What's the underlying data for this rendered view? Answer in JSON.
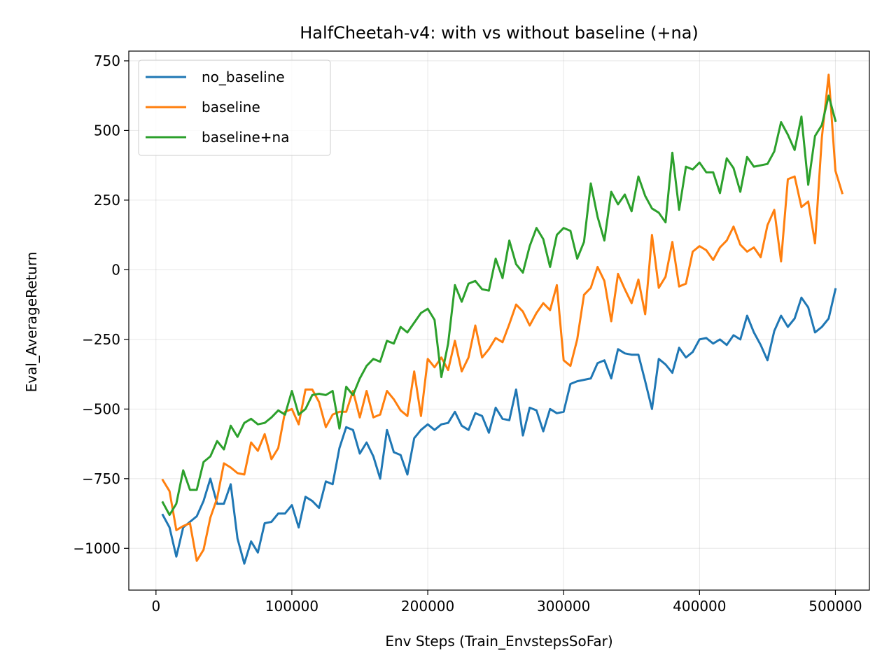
{
  "chart_data": {
    "type": "line",
    "title": "HalfCheetah-v4: with vs without baseline (+na)",
    "xlabel": "Env Steps (Train_EnvstepsSoFar)",
    "ylabel": "Eval_AverageReturn",
    "xlim": [
      -20000,
      525000
    ],
    "ylim": [
      -1150,
      785
    ],
    "xticks": [
      0,
      100000,
      200000,
      300000,
      400000,
      500000
    ],
    "xtick_labels": [
      "0",
      "100000",
      "200000",
      "300000",
      "400000",
      "500000"
    ],
    "yticks": [
      -1000,
      -750,
      -500,
      -250,
      0,
      250,
      500,
      750
    ],
    "ytick_labels": [
      "−1000",
      "−750",
      "−500",
      "−250",
      "0",
      "250",
      "500",
      "750"
    ],
    "grid": true,
    "legend_position": "top-left",
    "x_start": 5000,
    "x_step": 5000,
    "series": [
      {
        "name": "no_baseline",
        "color": "#1f77b4",
        "values": [
          -880,
          -925,
          -1030,
          -925,
          -905,
          -885,
          -830,
          -750,
          -840,
          -840,
          -770,
          -965,
          -1055,
          -975,
          -1015,
          -910,
          -905,
          -875,
          -875,
          -845,
          -925,
          -815,
          -830,
          -855,
          -760,
          -770,
          -640,
          -565,
          -575,
          -660,
          -620,
          -670,
          -750,
          -575,
          -655,
          -665,
          -735,
          -605,
          -575,
          -555,
          -575,
          -555,
          -550,
          -510,
          -560,
          -575,
          -515,
          -525,
          -585,
          -495,
          -535,
          -540,
          -430,
          -595,
          -495,
          -505,
          -580,
          -500,
          -515,
          -510,
          -410,
          -400,
          -395,
          -390,
          -335,
          -325,
          -390,
          -285,
          -300,
          -305,
          -305,
          -400,
          -500,
          -320,
          -340,
          -370,
          -280,
          -315,
          -295,
          -250,
          -245,
          -265,
          -250,
          -270,
          -235,
          -250,
          -165,
          -225,
          -270,
          -325,
          -220,
          -165,
          -205,
          -175,
          -100,
          -135,
          -225,
          -205,
          -175,
          -70
        ]
      },
      {
        "name": "baseline",
        "color": "#ff7f0e",
        "values": [
          -755,
          -795,
          -935,
          -920,
          -910,
          -1045,
          -1005,
          -890,
          -820,
          -695,
          -710,
          -730,
          -735,
          -620,
          -650,
          -590,
          -680,
          -640,
          -510,
          -500,
          -555,
          -430,
          -430,
          -475,
          -565,
          -520,
          -510,
          -510,
          -435,
          -530,
          -435,
          -530,
          -520,
          -435,
          -465,
          -505,
          -525,
          -365,
          -525,
          -320,
          -350,
          -315,
          -360,
          -255,
          -365,
          -315,
          -200,
          -315,
          -285,
          -245,
          -260,
          -195,
          -125,
          -150,
          -200,
          -155,
          -120,
          -145,
          -55,
          -325,
          -345,
          -250,
          -90,
          -65,
          10,
          -40,
          -185,
          -15,
          -70,
          -120,
          -35,
          -160,
          125,
          -65,
          -25,
          100,
          -60,
          -50,
          65,
          85,
          70,
          35,
          80,
          105,
          155,
          90,
          65,
          80,
          45,
          160,
          215,
          30,
          325,
          335,
          225,
          245,
          95,
          475,
          700,
          355,
          275
        ]
      },
      {
        "name": "baseline+na",
        "color": "#2ca02c",
        "values": [
          -835,
          -880,
          -840,
          -720,
          -790,
          -790,
          -690,
          -670,
          -615,
          -645,
          -560,
          -600,
          -550,
          -535,
          -555,
          -550,
          -530,
          -505,
          -520,
          -435,
          -520,
          -500,
          -450,
          -445,
          -450,
          -435,
          -570,
          -420,
          -450,
          -390,
          -345,
          -320,
          -330,
          -255,
          -265,
          -205,
          -225,
          -190,
          -155,
          -140,
          -180,
          -385,
          -265,
          -55,
          -115,
          -50,
          -40,
          -70,
          -75,
          40,
          -30,
          105,
          20,
          -10,
          85,
          150,
          110,
          10,
          125,
          150,
          140,
          40,
          100,
          310,
          190,
          105,
          280,
          235,
          270,
          210,
          335,
          265,
          220,
          205,
          170,
          420,
          215,
          370,
          360,
          385,
          350,
          350,
          275,
          400,
          365,
          280,
          405,
          370,
          375,
          380,
          425,
          530,
          485,
          430,
          550,
          305,
          480,
          520,
          625,
          535
        ]
      }
    ]
  }
}
